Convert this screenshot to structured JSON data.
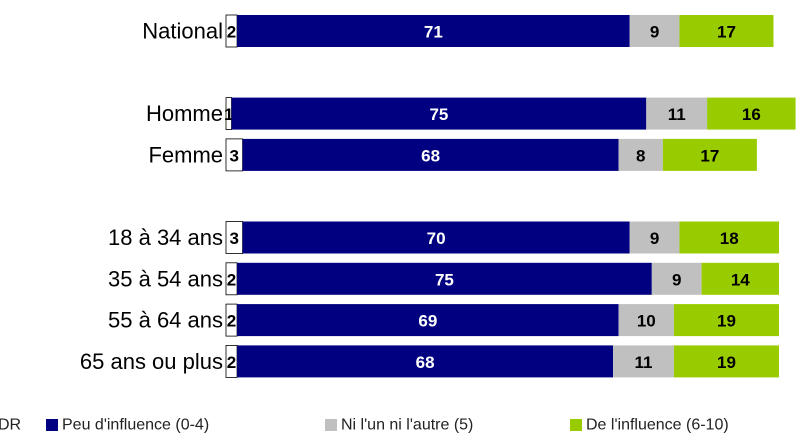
{
  "chart_data": {
    "type": "stacked-barh",
    "categories": [
      "National",
      null,
      "Homme",
      "Femme",
      null,
      "18 à 34 ans",
      "35 à 54 ans",
      "55 à 64 ans",
      "65 ans ou plus"
    ],
    "series": [
      {
        "name": "DR",
        "color": "#ffffff",
        "values": [
          2,
          null,
          1,
          3,
          null,
          3,
          2,
          2,
          2
        ]
      },
      {
        "name": "Peu d'influence (0-4)",
        "color": "#000080",
        "values": [
          71,
          null,
          75,
          68,
          null,
          70,
          75,
          69,
          68
        ]
      },
      {
        "name": "Ni l'un ni l'autre (5)",
        "color": "#c0c0c0",
        "values": [
          9,
          null,
          11,
          8,
          null,
          9,
          9,
          10,
          11
        ]
      },
      {
        "name": "De l'influence (6-10)",
        "color": "#99cc00",
        "values": [
          17,
          null,
          16,
          17,
          null,
          18,
          14,
          19,
          19
        ]
      }
    ],
    "xlim": [
      0,
      100
    ],
    "legend": "bottom"
  }
}
